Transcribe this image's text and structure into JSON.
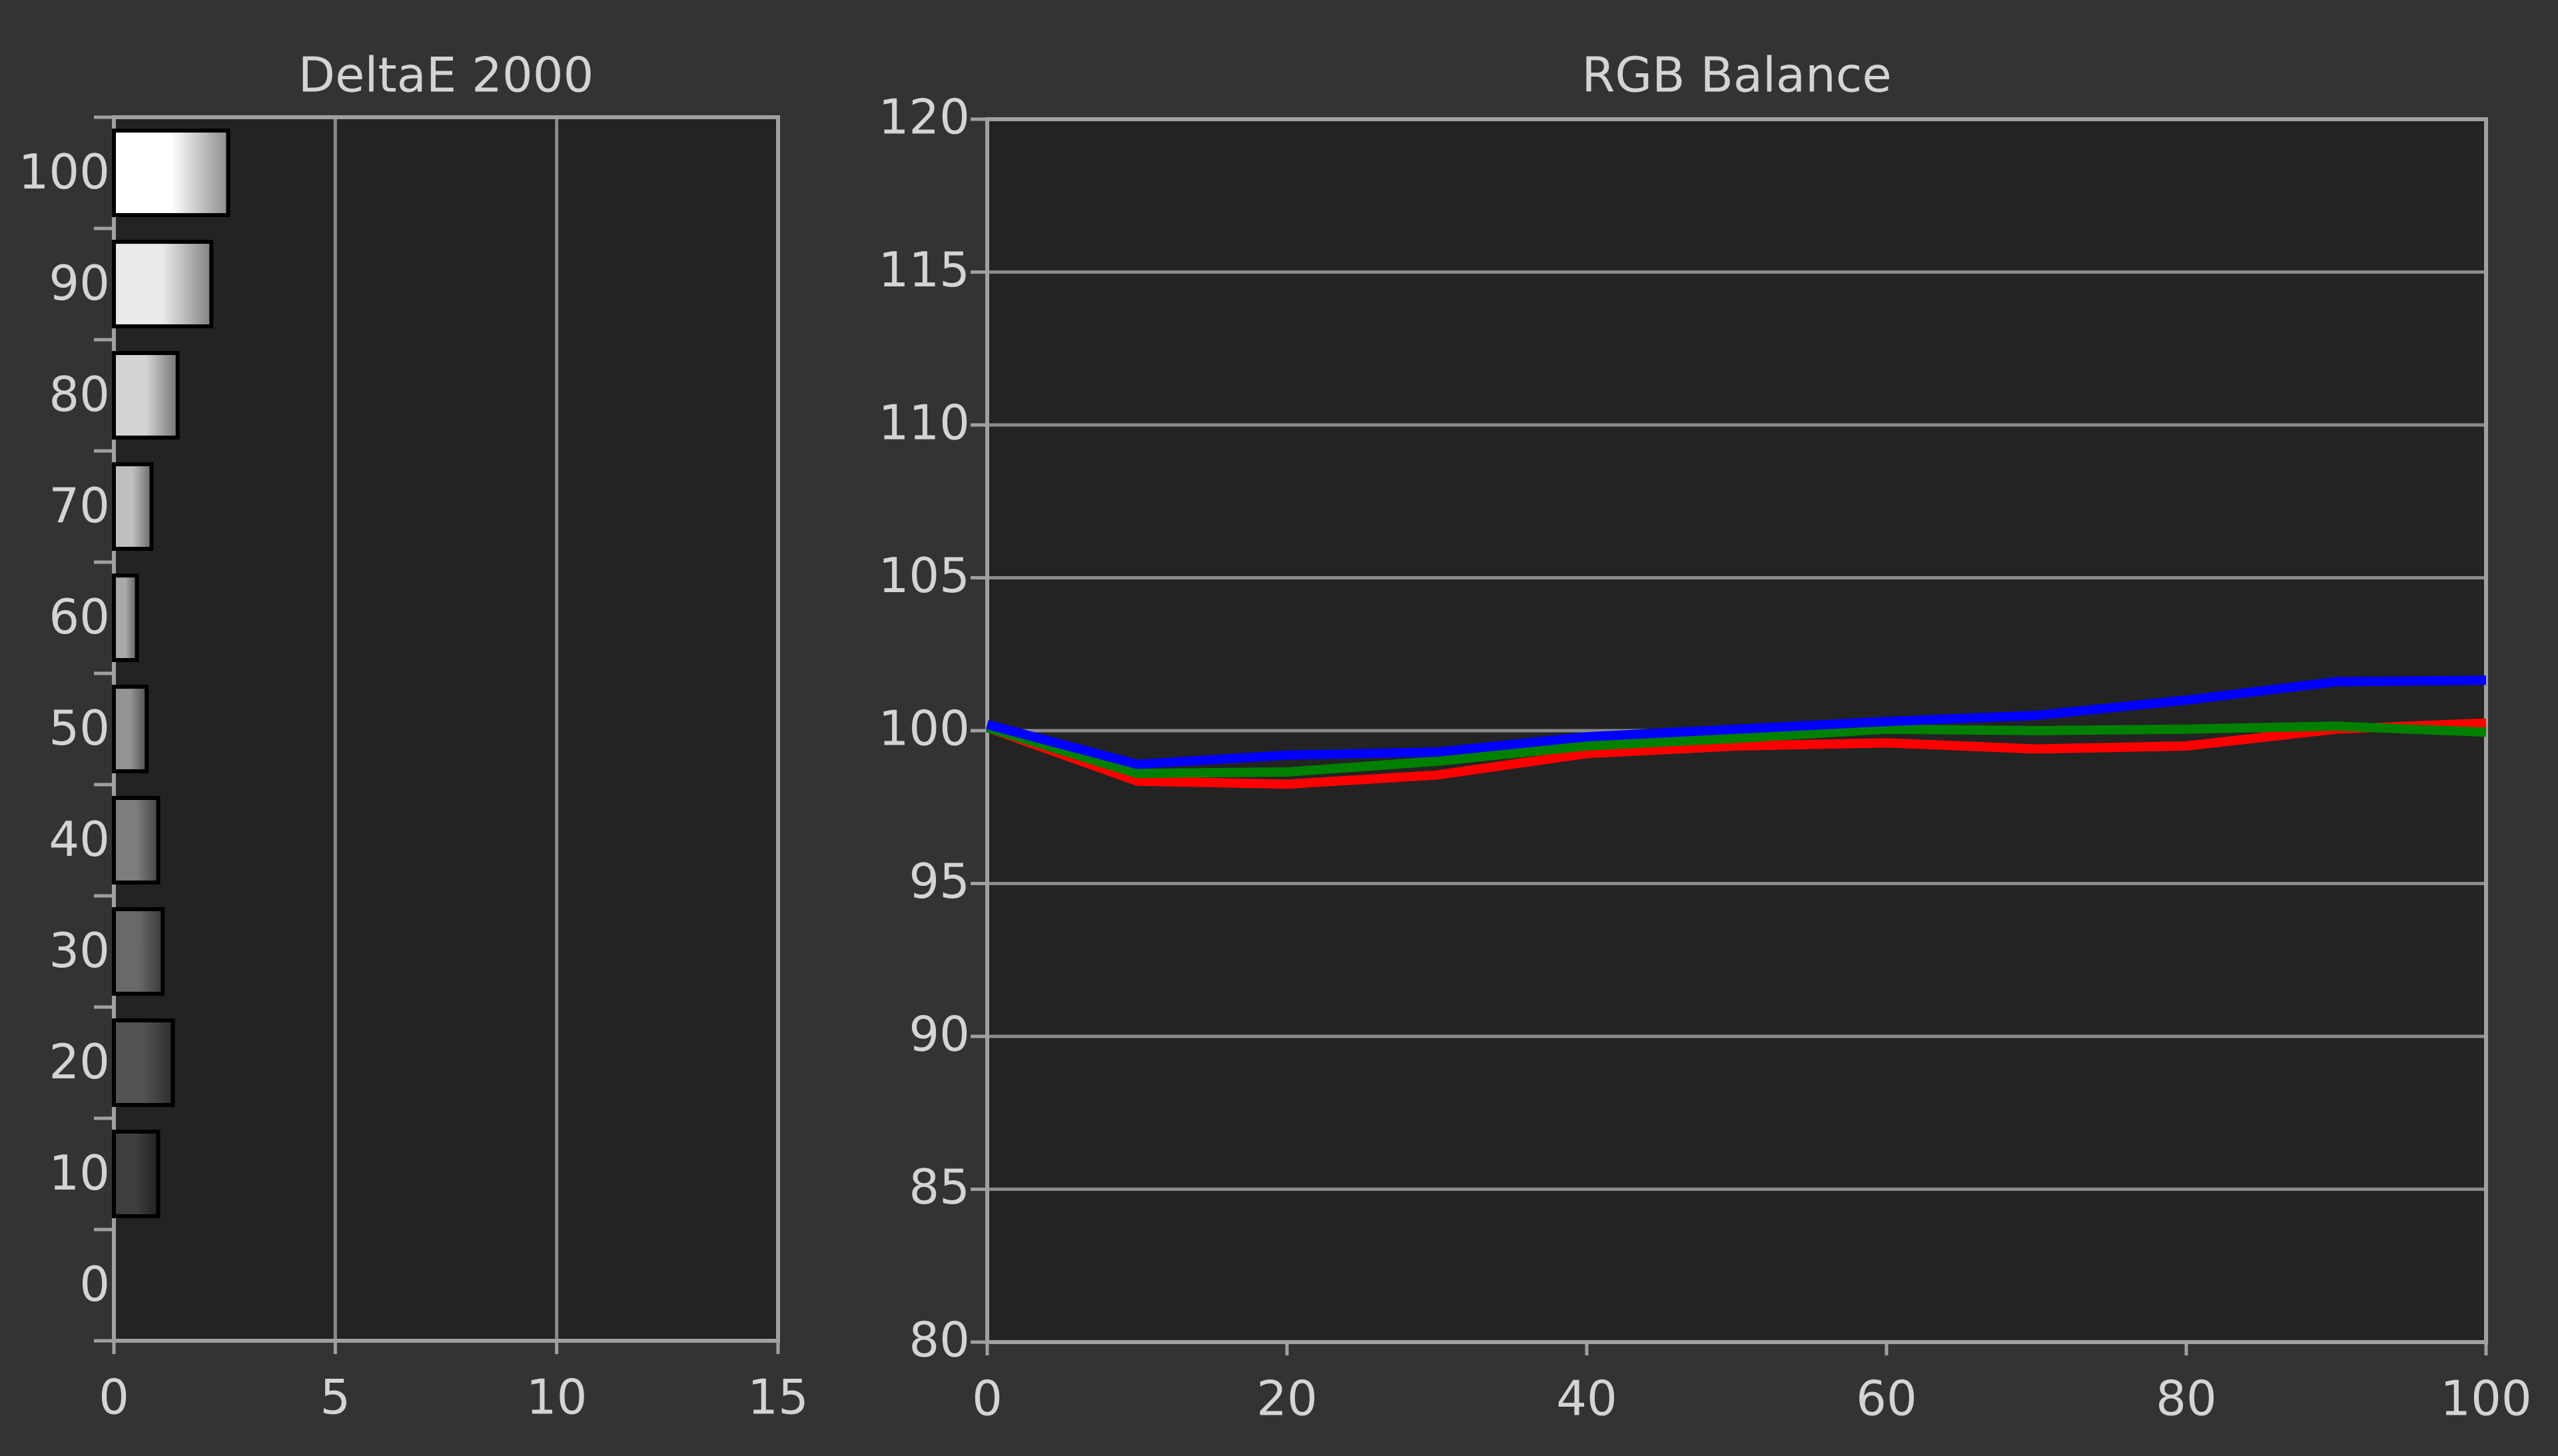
{
  "chart_data": [
    {
      "type": "hbar",
      "title": "DeltaE 2000",
      "categories": [
        "0",
        "10",
        "20",
        "30",
        "40",
        "50",
        "60",
        "70",
        "80",
        "90",
        "100"
      ],
      "values": [
        null,
        1.0,
        1.33,
        1.1,
        1.0,
        0.74,
        0.52,
        0.85,
        1.44,
        2.2,
        2.58
      ],
      "xlim": [
        0,
        15
      ],
      "xticks": [
        0,
        5,
        10,
        15
      ],
      "grid": true
    },
    {
      "type": "line",
      "title": "RGB Balance",
      "x": [
        0,
        10,
        20,
        30,
        40,
        50,
        60,
        70,
        80,
        90,
        100
      ],
      "series": [
        {
          "color": "#ff0000",
          "values": [
            100.1,
            98.35,
            98.25,
            98.55,
            99.25,
            99.5,
            99.6,
            99.4,
            99.5,
            100.05,
            100.25
          ]
        },
        {
          "color": "#008000",
          "values": [
            100.1,
            98.6,
            98.65,
            99.0,
            99.5,
            99.75,
            100.05,
            100.0,
            100.05,
            100.15,
            99.95
          ]
        },
        {
          "color": "#0000ff",
          "values": [
            100.2,
            98.9,
            99.2,
            99.3,
            99.8,
            100.05,
            100.3,
            100.5,
            101.0,
            101.6,
            101.65
          ]
        }
      ],
      "xlim": [
        0,
        100
      ],
      "xticks": [
        0,
        20,
        40,
        60,
        80,
        100
      ],
      "ylim": [
        80,
        120
      ],
      "yticks": [
        80,
        85,
        90,
        95,
        100,
        105,
        110,
        115,
        120
      ],
      "grid": true
    }
  ]
}
